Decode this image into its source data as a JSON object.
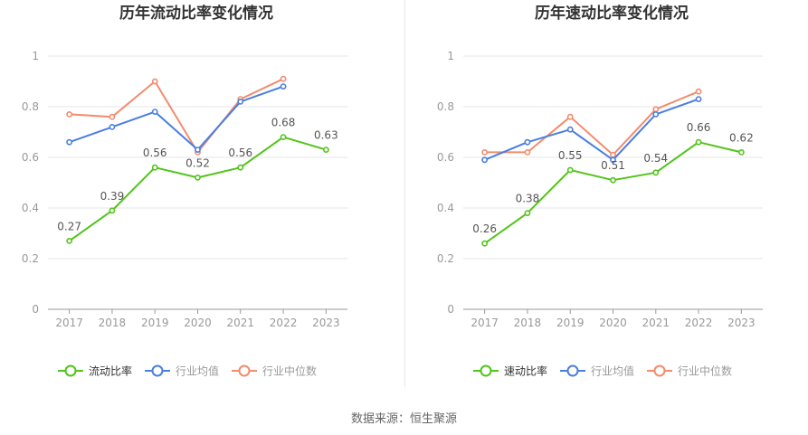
{
  "source": "数据来源：恒生聚源",
  "chart_data": [
    {
      "type": "line",
      "title": "历年流动比率变化情况",
      "categories": [
        "2017",
        "2018",
        "2019",
        "2020",
        "2021",
        "2022",
        "2023"
      ],
      "ylim": [
        0,
        1
      ],
      "yticks": [
        "0",
        "0.2",
        "0.4",
        "0.6",
        "0.8",
        "1"
      ],
      "grid": true,
      "legend_position": "bottom",
      "series": [
        {
          "name": "流动比率",
          "color": "#52c41a",
          "labels": true,
          "values": [
            0.27,
            0.39,
            0.56,
            0.52,
            0.56,
            0.68,
            0.63
          ]
        },
        {
          "name": "行业均值",
          "color": "#4a7ee0",
          "labels": false,
          "values": [
            0.66,
            0.72,
            0.78,
            0.63,
            0.82,
            0.88,
            null
          ]
        },
        {
          "name": "行业中位数",
          "color": "#f28c6c",
          "labels": false,
          "values": [
            0.77,
            0.76,
            0.9,
            0.62,
            0.83,
            0.91,
            null
          ]
        }
      ]
    },
    {
      "type": "line",
      "title": "历年速动比率变化情况",
      "categories": [
        "2017",
        "2018",
        "2019",
        "2020",
        "2021",
        "2022",
        "2023"
      ],
      "ylim": [
        0,
        1
      ],
      "yticks": [
        "0",
        "0.2",
        "0.4",
        "0.6",
        "0.8",
        "1"
      ],
      "grid": true,
      "legend_position": "bottom",
      "series": [
        {
          "name": "速动比率",
          "color": "#52c41a",
          "labels": true,
          "values": [
            0.26,
            0.38,
            0.55,
            0.51,
            0.54,
            0.66,
            0.62
          ]
        },
        {
          "name": "行业均值",
          "color": "#4a7ee0",
          "labels": false,
          "values": [
            0.59,
            0.66,
            0.71,
            0.59,
            0.77,
            0.83,
            null
          ]
        },
        {
          "name": "行业中位数",
          "color": "#f28c6c",
          "labels": false,
          "values": [
            0.62,
            0.62,
            0.76,
            0.61,
            0.79,
            0.86,
            null
          ]
        }
      ]
    }
  ]
}
